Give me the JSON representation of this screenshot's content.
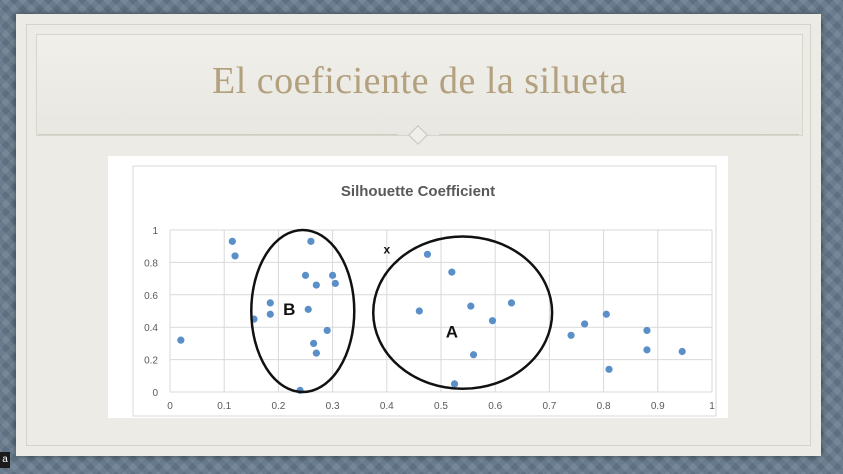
{
  "slide": {
    "title": "El coeficiente de la silueta",
    "corner_label": "a"
  },
  "colors": {
    "title": "#b2a07e",
    "point": "#5b8fc8",
    "ellipse": "#111111",
    "grid": "#d9d9d9"
  },
  "chart_data": {
    "type": "scatter",
    "title": "Silhouette Coefficient",
    "xlabel": "",
    "ylabel": "",
    "xlim": [
      0,
      1
    ],
    "ylim": [
      0,
      1
    ],
    "xticks": [
      "0",
      "0.1",
      "0.2",
      "0.3",
      "0.4",
      "0.5",
      "0.6",
      "0.7",
      "0.8",
      "0.9",
      "1"
    ],
    "yticks": [
      "0",
      "0.2",
      "0.4",
      "0.6",
      "0.8",
      "1"
    ],
    "grid": true,
    "legend": "none",
    "points": [
      {
        "x": 0.02,
        "y": 0.32
      },
      {
        "x": 0.115,
        "y": 0.93
      },
      {
        "x": 0.12,
        "y": 0.84
      },
      {
        "x": 0.155,
        "y": 0.45
      },
      {
        "x": 0.185,
        "y": 0.55
      },
      {
        "x": 0.185,
        "y": 0.48
      },
      {
        "x": 0.24,
        "y": 0.01
      },
      {
        "x": 0.25,
        "y": 0.72
      },
      {
        "x": 0.255,
        "y": 0.51
      },
      {
        "x": 0.26,
        "y": 0.93
      },
      {
        "x": 0.265,
        "y": 0.3
      },
      {
        "x": 0.27,
        "y": 0.66
      },
      {
        "x": 0.27,
        "y": 0.24
      },
      {
        "x": 0.29,
        "y": 0.38
      },
      {
        "x": 0.3,
        "y": 0.72
      },
      {
        "x": 0.305,
        "y": 0.67
      },
      {
        "x": 0.46,
        "y": 0.5
      },
      {
        "x": 0.475,
        "y": 0.85
      },
      {
        "x": 0.52,
        "y": 0.74
      },
      {
        "x": 0.525,
        "y": 0.05
      },
      {
        "x": 0.555,
        "y": 0.53
      },
      {
        "x": 0.56,
        "y": 0.23
      },
      {
        "x": 0.595,
        "y": 0.44
      },
      {
        "x": 0.63,
        "y": 0.55
      },
      {
        "x": 0.74,
        "y": 0.35
      },
      {
        "x": 0.765,
        "y": 0.42
      },
      {
        "x": 0.805,
        "y": 0.48
      },
      {
        "x": 0.81,
        "y": 0.14
      },
      {
        "x": 0.88,
        "y": 0.38
      },
      {
        "x": 0.88,
        "y": 0.26
      },
      {
        "x": 0.945,
        "y": 0.25
      }
    ],
    "annotations": [
      {
        "text": "x",
        "x": 0.4,
        "y": 0.88
      },
      {
        "text": "B",
        "x": 0.22,
        "y": 0.51
      },
      {
        "text": "A",
        "x": 0.52,
        "y": 0.37
      }
    ],
    "clusters": [
      {
        "label": "B",
        "cx": 0.245,
        "cy": 0.5,
        "rx": 0.095,
        "ry": 0.5
      },
      {
        "label": "A",
        "cx": 0.54,
        "cy": 0.49,
        "rx": 0.165,
        "ry": 0.47
      }
    ]
  }
}
